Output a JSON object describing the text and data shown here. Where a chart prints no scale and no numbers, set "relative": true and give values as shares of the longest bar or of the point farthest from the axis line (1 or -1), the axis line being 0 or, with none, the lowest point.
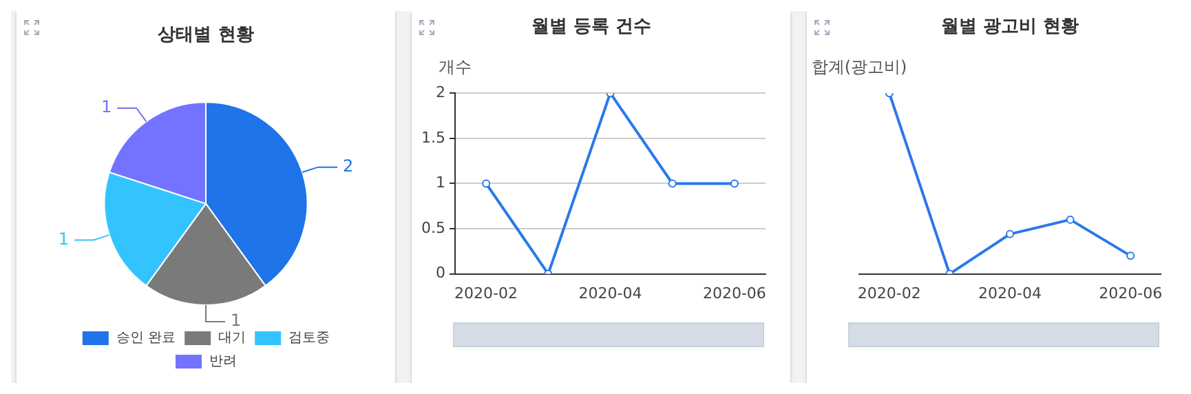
{
  "chart_data": [
    {
      "type": "pie",
      "title": "상태별 현황",
      "categories": [
        "승인 완료",
        "대기",
        "검토중",
        "반려"
      ],
      "values": [
        2,
        1,
        1,
        1
      ],
      "colors": [
        "#1e74e8",
        "#7a7a7a",
        "#33c4ff",
        "#7373ff"
      ],
      "data_labels": true,
      "legend": "bottom"
    },
    {
      "type": "line",
      "title": "월별 등록 건수",
      "ylabel": "개수",
      "categories": [
        "2020-02",
        null,
        "2020-04",
        null,
        "2020-06"
      ],
      "series": [
        {
          "color": "#2979e8",
          "values": [
            1,
            0,
            2,
            1,
            1
          ]
        }
      ],
      "ylim": [
        0,
        2
      ],
      "yticks": [
        0,
        0.5,
        1,
        1.5,
        2
      ],
      "grid": "y",
      "marker": "circle",
      "line_style": "solid"
    },
    {
      "type": "line",
      "title": "월별 광고비 현황",
      "ylabel": "합계(광고비)",
      "categories": [
        "2020-02",
        null,
        "2020-04",
        null,
        "2020-06"
      ],
      "series": [
        {
          "color": "#2979e8",
          "values": [
            1,
            0,
            0.22,
            0.3,
            0.1
          ]
        }
      ],
      "relative": true,
      "marker": "circle",
      "line_style": "solid"
    }
  ]
}
